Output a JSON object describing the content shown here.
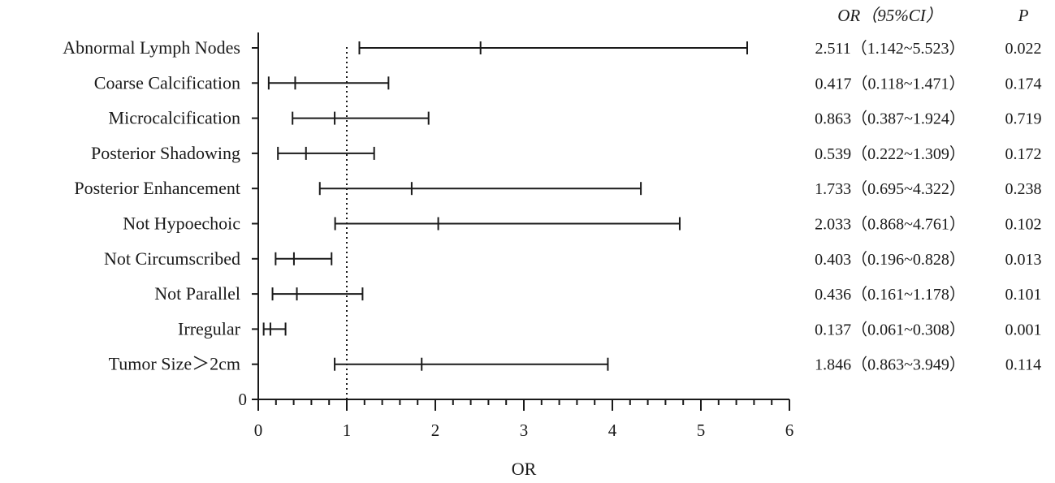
{
  "chart_data": {
    "type": "forest",
    "xlabel": "OR",
    "xlim": [
      0,
      6
    ],
    "xticks": [
      "0",
      "1",
      "2",
      "3",
      "4",
      "5",
      "6"
    ],
    "y_zero_label": "0",
    "reference_line": 1,
    "column_headers": {
      "or_ci": "OR（95%CI）",
      "p": "P"
    },
    "rows": [
      {
        "label": "Abnormal Lymph Nodes",
        "or": 2.511,
        "lower": 1.142,
        "upper": 5.523,
        "or_ci_text": "2.511（1.142~5.523）",
        "p": "0.022"
      },
      {
        "label": "Coarse Calcification",
        "or": 0.417,
        "lower": 0.118,
        "upper": 1.471,
        "or_ci_text": "0.417（0.118~1.471）",
        "p": "0.174"
      },
      {
        "label": "Microcalcification",
        "or": 0.863,
        "lower": 0.387,
        "upper": 1.924,
        "or_ci_text": "0.863（0.387~1.924）",
        "p": "0.719"
      },
      {
        "label": "Posterior Shadowing",
        "or": 0.539,
        "lower": 0.222,
        "upper": 1.309,
        "or_ci_text": "0.539（0.222~1.309）",
        "p": "0.172"
      },
      {
        "label": "Posterior Enhancement",
        "or": 1.733,
        "lower": 0.695,
        "upper": 4.322,
        "or_ci_text": "1.733（0.695~4.322）",
        "p": "0.238"
      },
      {
        "label": "Not Hypoechoic",
        "or": 2.033,
        "lower": 0.868,
        "upper": 4.761,
        "or_ci_text": "2.033（0.868~4.761）",
        "p": "0.102"
      },
      {
        "label": "Not Circumscribed",
        "or": 0.403,
        "lower": 0.196,
        "upper": 0.828,
        "or_ci_text": "0.403（0.196~0.828）",
        "p": "0.013"
      },
      {
        "label": "Not Parallel",
        "or": 0.436,
        "lower": 0.161,
        "upper": 1.178,
        "or_ci_text": "0.436（0.161~1.178）",
        "p": "0.101"
      },
      {
        "label": "Irregular",
        "or": 0.137,
        "lower": 0.061,
        "upper": 0.308,
        "or_ci_text": "0.137（0.061~0.308）",
        "p": "0.001"
      },
      {
        "label": "Tumor Size＞2cm",
        "or": 1.846,
        "lower": 0.863,
        "upper": 3.949,
        "or_ci_text": "1.846（0.863~3.949）",
        "p": "0.114"
      }
    ]
  }
}
